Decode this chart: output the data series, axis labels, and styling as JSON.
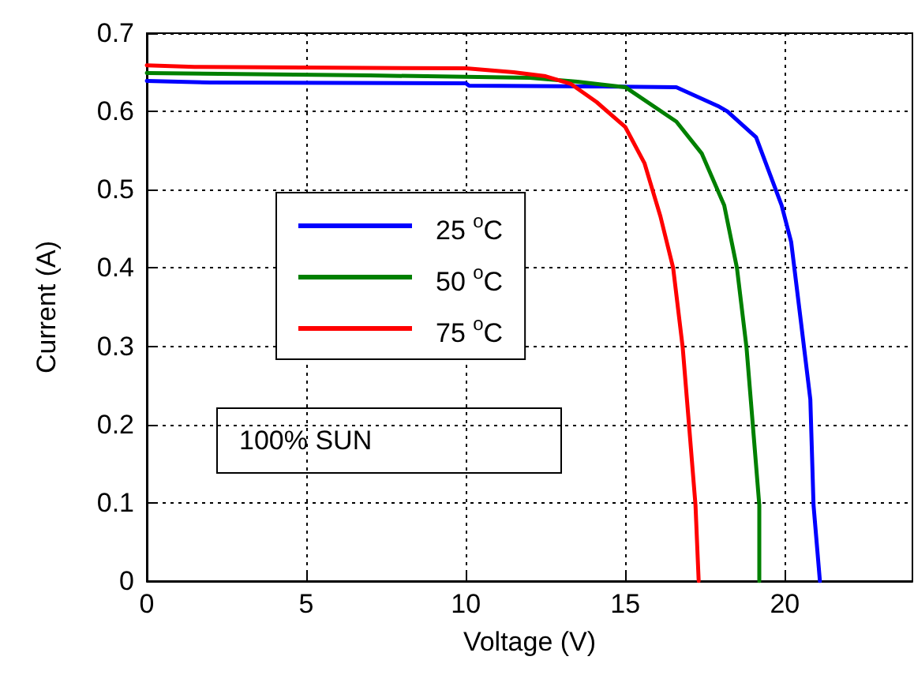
{
  "chart_data": {
    "type": "line",
    "xlabel": "Voltage (V)",
    "ylabel": "Current (A)",
    "annotations": [
      "100% SUN"
    ],
    "xlim": [
      0,
      24
    ],
    "xticks": [
      0,
      5,
      10,
      15,
      20
    ],
    "ylim": [
      0,
      0.7
    ],
    "yticks": [
      0,
      0.1,
      0.2,
      0.3,
      0.4,
      0.5,
      0.6,
      0.7
    ],
    "grid": true,
    "legend": "left",
    "marker": "none",
    "line_style": "solid",
    "series": [
      {
        "name": "25 $^{o}$C",
        "color": "#0000ff",
        "x": [
          0,
          2,
          10,
          10.1,
          14,
          16.6,
          17.9,
          18.2,
          19.1,
          19.9,
          20.2,
          20.5,
          20.8,
          20.9,
          21.1
        ],
        "values": [
          0.639,
          0.637,
          0.636,
          0.633,
          0.632,
          0.631,
          0.607,
          0.6,
          0.567,
          0.48,
          0.433,
          0.333,
          0.232,
          0.097,
          0
        ]
      },
      {
        "name": "50 $^{o}$C",
        "color": "#008000",
        "x": [
          0,
          7,
          12,
          13.5,
          15,
          16.6,
          17.4,
          18.1,
          18.5,
          18.8,
          19,
          19.2,
          19.2
        ],
        "values": [
          0.649,
          0.646,
          0.643,
          0.638,
          0.631,
          0.587,
          0.546,
          0.48,
          0.4,
          0.298,
          0.198,
          0.097,
          0
        ]
      },
      {
        "name": "75 $^{o}$C",
        "color": "#ff0000",
        "x": [
          0,
          1.5,
          10,
          11.5,
          12.5,
          13.3,
          14.1,
          15,
          15.6,
          16.1,
          16.5,
          16.8,
          17,
          17.2,
          17.3
        ],
        "values": [
          0.659,
          0.657,
          0.655,
          0.65,
          0.645,
          0.635,
          0.612,
          0.58,
          0.534,
          0.466,
          0.4,
          0.298,
          0.198,
          0.097,
          0
        ]
      }
    ]
  }
}
